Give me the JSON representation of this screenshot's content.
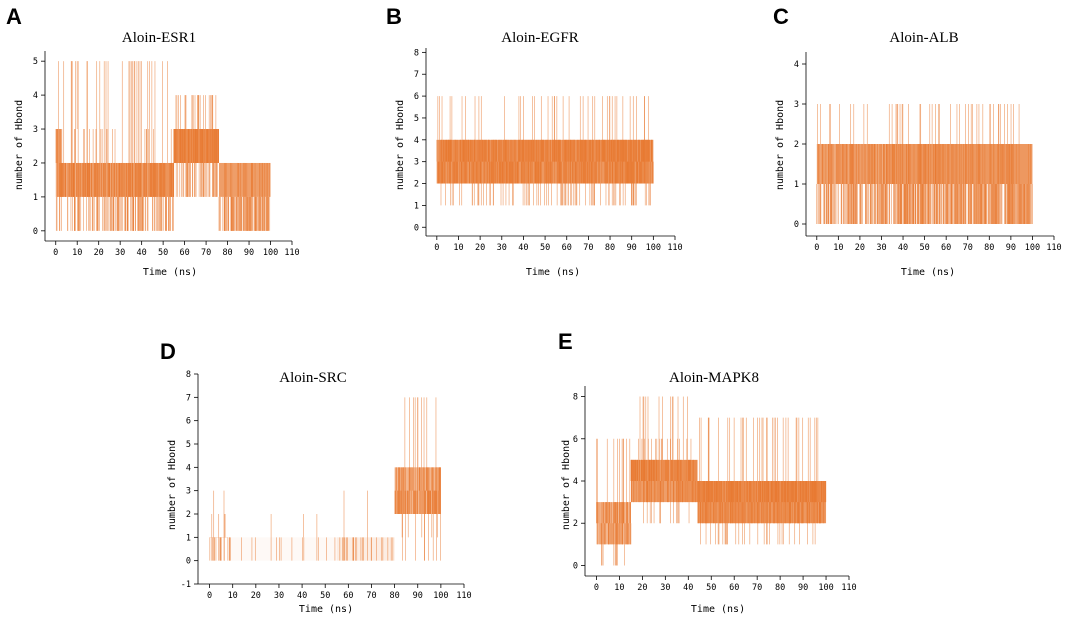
{
  "figure": {
    "series_color": "#E8782F"
  },
  "chart_data": [
    {
      "panel": "A",
      "type": "line",
      "title": "Aloin-ESR1",
      "xlabel": "Time (ns)",
      "ylabel": "number of Hbond",
      "xlim": [
        -5,
        110
      ],
      "ylim": [
        -0.3,
        5.3
      ],
      "xticks": [
        0,
        10,
        20,
        30,
        40,
        50,
        60,
        70,
        80,
        90,
        100,
        110
      ],
      "yticks": [
        0,
        1,
        2,
        3,
        4,
        5
      ],
      "segments": [
        {
          "x0": 0,
          "x1": 3,
          "base": 2,
          "hi": 5,
          "lo": 0,
          "mid": 1,
          "dens": 0.6
        },
        {
          "x0": 3,
          "x1": 55,
          "base": 1.5,
          "hi": 5,
          "lo": 0,
          "mid": 1,
          "dens": 0.7
        },
        {
          "x0": 55,
          "x1": 76,
          "base": 2.5,
          "hi": 4,
          "lo": 1,
          "mid": 2,
          "dens": 0.8
        },
        {
          "x0": 76,
          "x1": 100,
          "base": 0.6,
          "hi": 2,
          "lo": 0,
          "mid": 1,
          "dens": 0.8
        }
      ]
    },
    {
      "panel": "B",
      "type": "line",
      "title": "Aloin-EGFR",
      "xlabel": "Time (ns)",
      "ylabel": "number of Hbond",
      "xlim": [
        -5,
        110
      ],
      "ylim": [
        -0.4,
        8.2
      ],
      "xticks": [
        0,
        10,
        20,
        30,
        40,
        50,
        60,
        70,
        80,
        90,
        100,
        110
      ],
      "yticks": [
        0,
        1,
        2,
        3,
        4,
        5,
        6,
        7,
        8
      ],
      "segments": [
        {
          "x0": 0,
          "x1": 100,
          "base": 3.2,
          "hi": 6,
          "lo": 1,
          "mid": 2,
          "dens": 0.85
        }
      ]
    },
    {
      "panel": "C",
      "type": "line",
      "title": "Aloin-ALB",
      "xlabel": "Time (ns)",
      "ylabel": "number of Hbond",
      "xlim": [
        -5,
        110
      ],
      "ylim": [
        -0.3,
        4.3
      ],
      "xticks": [
        0,
        10,
        20,
        30,
        40,
        50,
        60,
        70,
        80,
        90,
        100,
        110
      ],
      "yticks": [
        0,
        1,
        2,
        3,
        4
      ],
      "segments": [
        {
          "x0": 0,
          "x1": 3,
          "base": 1.5,
          "hi": 4,
          "lo": 0,
          "mid": 1,
          "dens": 0.6
        },
        {
          "x0": 3,
          "x1": 38,
          "base": 1,
          "hi": 3,
          "lo": 0,
          "mid": 1,
          "dens": 0.7
        },
        {
          "x0": 38,
          "x1": 100,
          "base": 0.6,
          "hi": 3,
          "lo": 0,
          "mid": 1,
          "dens": 0.85
        }
      ]
    },
    {
      "panel": "D",
      "type": "line",
      "title": "Aloin-SRC",
      "xlabel": "Time (ns)",
      "ylabel": "number of Hbond",
      "xlim": [
        -5,
        110
      ],
      "ylim": [
        -1,
        8
      ],
      "xticks": [
        0,
        10,
        20,
        30,
        40,
        50,
        60,
        70,
        80,
        90,
        100,
        110
      ],
      "yticks": [
        -1,
        0,
        1,
        2,
        3,
        4,
        5,
        6,
        7,
        8
      ],
      "segments": [
        {
          "x0": 0,
          "x1": 8,
          "base": 0.5,
          "hi": 3,
          "lo": 0,
          "mid": 1,
          "dens": 0.3
        },
        {
          "x0": 8,
          "x1": 55,
          "base": 0,
          "hi": 2,
          "lo": 0,
          "mid": 0,
          "dens": 0.05
        },
        {
          "x0": 55,
          "x1": 80,
          "base": 0.2,
          "hi": 3,
          "lo": 0,
          "mid": 0,
          "dens": 0.15
        },
        {
          "x0": 80,
          "x1": 100,
          "base": 2.8,
          "hi": 7,
          "lo": 0,
          "mid": 2,
          "dens": 0.6
        }
      ]
    },
    {
      "panel": "E",
      "type": "line",
      "title": "Aloin-MAPK8",
      "xlabel": "Time (ns)",
      "ylabel": "number of Hbond",
      "xlim": [
        -5,
        110
      ],
      "ylim": [
        -0.5,
        8.5
      ],
      "xticks": [
        0,
        10,
        20,
        30,
        40,
        50,
        60,
        70,
        80,
        90,
        100,
        110
      ],
      "yticks": [
        0,
        2,
        4,
        6,
        8
      ],
      "segments": [
        {
          "x0": 0,
          "x1": 15,
          "base": 2.2,
          "hi": 6,
          "lo": 0,
          "mid": 1,
          "dens": 0.6
        },
        {
          "x0": 15,
          "x1": 44,
          "base": 4.5,
          "hi": 8,
          "lo": 2,
          "mid": 3,
          "dens": 0.8
        },
        {
          "x0": 44,
          "x1": 100,
          "base": 3.4,
          "hi": 7,
          "lo": 1,
          "mid": 2,
          "dens": 0.85
        }
      ]
    }
  ]
}
